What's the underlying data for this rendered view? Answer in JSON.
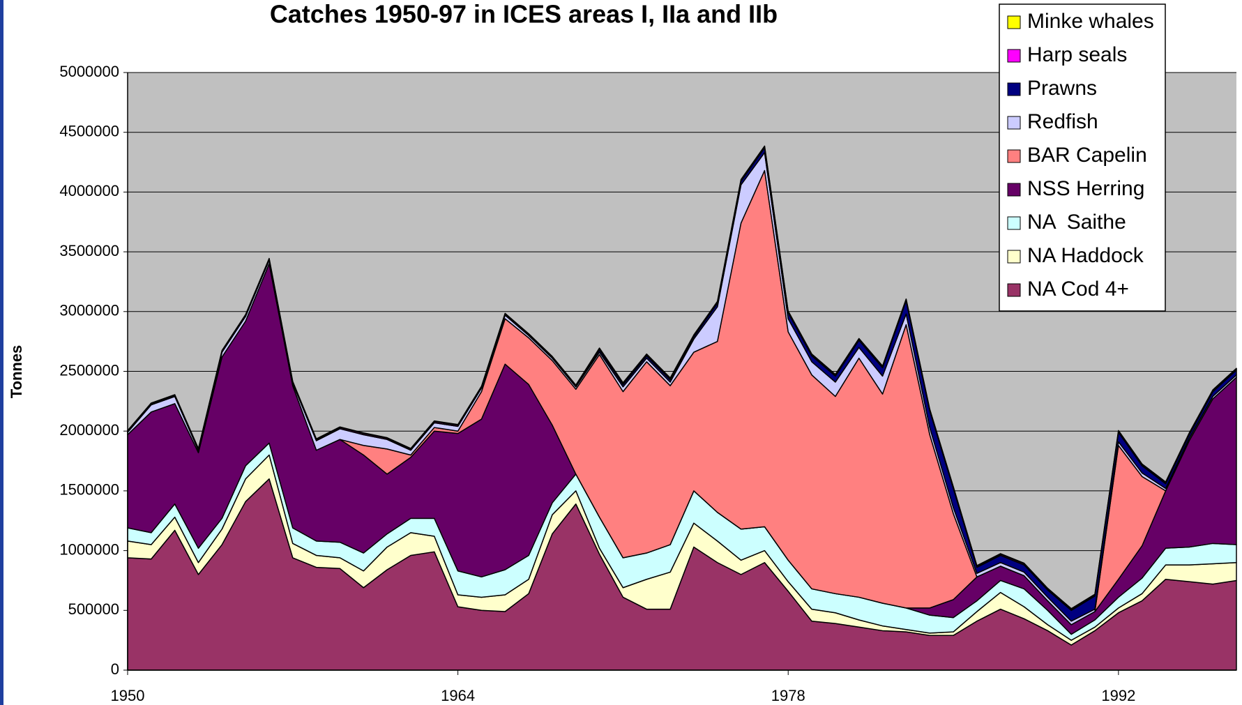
{
  "chart_data": {
    "type": "stacked_area",
    "title": "Catches 1950-97 in ICES areas I, IIa and IIb",
    "y_label": "Tonnes",
    "x": [
      1950,
      1951,
      1952,
      1953,
      1954,
      1955,
      1956,
      1957,
      1958,
      1959,
      1960,
      1961,
      1962,
      1963,
      1964,
      1965,
      1966,
      1967,
      1968,
      1969,
      1970,
      1971,
      1972,
      1973,
      1974,
      1975,
      1976,
      1977,
      1978,
      1979,
      1980,
      1981,
      1982,
      1983,
      1984,
      1985,
      1986,
      1987,
      1988,
      1989,
      1990,
      1991,
      1992,
      1993,
      1994,
      1995,
      1996,
      1997
    ],
    "xlim": [
      1950,
      1997
    ],
    "xticks": [
      1950,
      1964,
      1978,
      1992
    ],
    "ylim": [
      0,
      5000000
    ],
    "yticks": [
      0,
      500000,
      1000000,
      1500000,
      2000000,
      2500000,
      3000000,
      3500000,
      4000000,
      4500000,
      5000000
    ],
    "grid": true,
    "legend": "top-right",
    "series": [
      {
        "name": "NA Cod 4+",
        "color": "#993366",
        "values": [
          940000,
          930000,
          1170000,
          800000,
          1050000,
          1410000,
          1600000,
          940000,
          860000,
          850000,
          690000,
          840000,
          960000,
          990000,
          530000,
          500000,
          490000,
          640000,
          1140000,
          1390000,
          970000,
          610000,
          510000,
          510000,
          1030000,
          900000,
          800000,
          900000,
          660000,
          410000,
          390000,
          360000,
          330000,
          320000,
          290000,
          290000,
          410000,
          510000,
          430000,
          330000,
          210000,
          330000,
          480000,
          580000,
          760000,
          740000,
          720000,
          750000
        ]
      },
      {
        "name": "NA Haddock",
        "color": "#ffffcc",
        "values": [
          140000,
          120000,
          110000,
          100000,
          130000,
          190000,
          200000,
          120000,
          100000,
          90000,
          140000,
          190000,
          190000,
          130000,
          100000,
          110000,
          140000,
          120000,
          160000,
          110000,
          50000,
          80000,
          250000,
          310000,
          200000,
          180000,
          120000,
          100000,
          80000,
          100000,
          90000,
          60000,
          40000,
          20000,
          20000,
          30000,
          80000,
          140000,
          100000,
          50000,
          40000,
          30000,
          40000,
          60000,
          120000,
          140000,
          170000,
          150000
        ]
      },
      {
        "name": "NA  Saithe",
        "color": "#ccffff",
        "values": [
          110000,
          100000,
          110000,
          120000,
          90000,
          110000,
          100000,
          130000,
          120000,
          130000,
          150000,
          110000,
          120000,
          150000,
          200000,
          170000,
          210000,
          200000,
          100000,
          140000,
          260000,
          250000,
          220000,
          230000,
          270000,
          240000,
          260000,
          200000,
          180000,
          170000,
          160000,
          190000,
          190000,
          180000,
          150000,
          120000,
          90000,
          100000,
          150000,
          120000,
          50000,
          60000,
          90000,
          130000,
          140000,
          150000,
          170000,
          150000
        ]
      },
      {
        "name": "NSS Herring",
        "color": "#660066",
        "values": [
          780000,
          1010000,
          840000,
          800000,
          1350000,
          1210000,
          1500000,
          1190000,
          760000,
          860000,
          820000,
          500000,
          510000,
          730000,
          1150000,
          1320000,
          1720000,
          1430000,
          650000,
          0,
          0,
          0,
          0,
          0,
          0,
          0,
          0,
          0,
          0,
          0,
          0,
          0,
          0,
          0,
          60000,
          150000,
          200000,
          120000,
          110000,
          80000,
          80000,
          70000,
          150000,
          270000,
          480000,
          890000,
          1210000,
          1400000
        ]
      },
      {
        "name": "BAR Capelin",
        "color": "#ff8080",
        "values": [
          0,
          0,
          0,
          0,
          0,
          0,
          0,
          0,
          0,
          0,
          80000,
          210000,
          20000,
          30000,
          20000,
          230000,
          380000,
          390000,
          540000,
          710000,
          1360000,
          1390000,
          1600000,
          1330000,
          1160000,
          1430000,
          2560000,
          2980000,
          1910000,
          1790000,
          1650000,
          2000000,
          1750000,
          2370000,
          1450000,
          720000,
          0,
          0,
          0,
          0,
          0,
          0,
          1120000,
          580000,
          0,
          0,
          0,
          0
        ]
      },
      {
        "name": "Redfish",
        "color": "#ccccff",
        "values": [
          20000,
          60000,
          60000,
          20000,
          40000,
          40000,
          30000,
          20000,
          80000,
          90000,
          90000,
          80000,
          40000,
          40000,
          40000,
          30000,
          30000,
          20000,
          20000,
          20000,
          20000,
          40000,
          30000,
          30000,
          110000,
          290000,
          320000,
          150000,
          110000,
          110000,
          120000,
          90000,
          150000,
          90000,
          60000,
          50000,
          30000,
          30000,
          30000,
          30000,
          30000,
          20000,
          30000,
          30000,
          20000,
          20000,
          20000,
          20000
        ]
      },
      {
        "name": "Prawns",
        "color": "#000080",
        "values": [
          0,
          0,
          0,
          0,
          0,
          0,
          0,
          0,
          0,
          0,
          0,
          0,
          0,
          0,
          0,
          0,
          0,
          0,
          0,
          0,
          20000,
          20000,
          20000,
          20000,
          20000,
          30000,
          30000,
          40000,
          50000,
          50000,
          50000,
          60000,
          70000,
          110000,
          140000,
          160000,
          50000,
          60000,
          60000,
          60000,
          90000,
          110000,
          80000,
          60000,
          40000,
          30000,
          40000,
          40000
        ]
      },
      {
        "name": "Harp seals",
        "color": "#ff00ff",
        "values": [
          10000,
          10000,
          10000,
          10000,
          10000,
          10000,
          10000,
          10000,
          10000,
          10000,
          10000,
          10000,
          10000,
          10000,
          10000,
          10000,
          10000,
          10000,
          10000,
          10000,
          10000,
          10000,
          10000,
          10000,
          10000,
          10000,
          10000,
          10000,
          10000,
          10000,
          10000,
          10000,
          10000,
          10000,
          10000,
          10000,
          10000,
          10000,
          10000,
          10000,
          10000,
          10000,
          10000,
          10000,
          10000,
          10000,
          10000,
          10000
        ]
      },
      {
        "name": "Minke whales",
        "color": "#ffff00",
        "values": [
          5000,
          5000,
          5000,
          5000,
          5000,
          5000,
          5000,
          5000,
          5000,
          5000,
          5000,
          5000,
          5000,
          5000,
          5000,
          5000,
          5000,
          5000,
          5000,
          5000,
          5000,
          5000,
          5000,
          5000,
          5000,
          5000,
          5000,
          5000,
          5000,
          5000,
          5000,
          5000,
          5000,
          5000,
          5000,
          5000,
          5000,
          5000,
          5000,
          5000,
          5000,
          5000,
          5000,
          5000,
          5000,
          5000,
          5000,
          5000
        ]
      }
    ]
  }
}
